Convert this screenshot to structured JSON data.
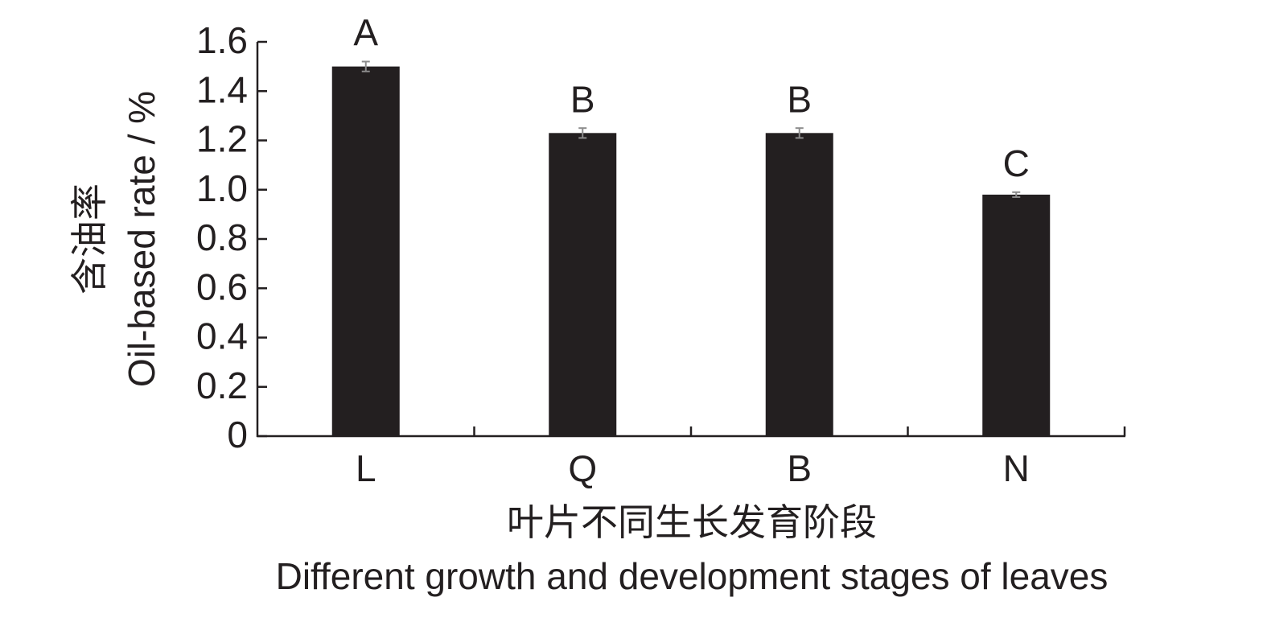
{
  "chart_data": {
    "type": "bar",
    "categories": [
      "L",
      "Q",
      "B",
      "N"
    ],
    "values": [
      1.5,
      1.23,
      1.23,
      0.98
    ],
    "errors": [
      0.02,
      0.02,
      0.02,
      0.01
    ],
    "letters": [
      "A",
      "B",
      "B",
      "C"
    ],
    "color": "#231f20",
    "error_color": "#8c8c8c",
    "ylim": [
      0,
      1.6
    ],
    "yticks": [
      0,
      0.2,
      0.4,
      0.6,
      0.8,
      {
        "value": 1,
        "label": "1.0"
      },
      1.2,
      1.4,
      1.6
    ],
    "xlabel": [
      "叶片不同生长发育阶段",
      "Different growth and development stages of leaves"
    ],
    "ylabel": [
      "含油率",
      "Oil-based rate / %"
    ]
  }
}
